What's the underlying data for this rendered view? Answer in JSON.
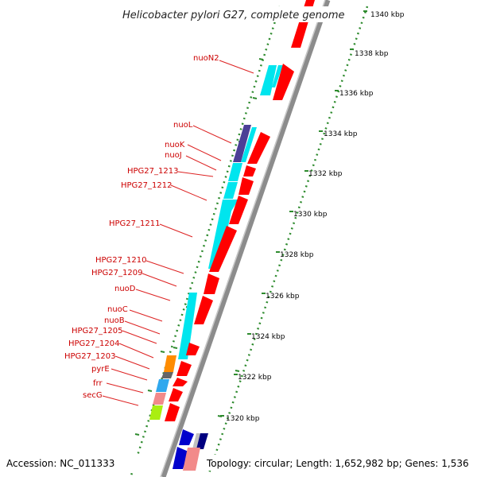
{
  "title": "Helicobacter pylori G27, complete genome",
  "accession": "Accession: NC_011333",
  "topology": "Topology: circular; Length: 1,652,982 bp; Genes: 1,536",
  "colors": {
    "backbone": "#8c8c8c",
    "ruler_dots": "#2e8b2e",
    "label_text": "#cc0000",
    "leader_line": "#dd2222",
    "forward_cds": "#ff0000",
    "reverse_cds": "#00e5ee",
    "nuoL_block": "#4b3f96",
    "orange_block": "#ff8c00",
    "gray_block": "#666666",
    "blue_block": "#2fa8ee",
    "pink_block": "#f28a8a",
    "lime_block": "#aaee11",
    "navy_block": "#0000cc"
  },
  "ruler_ticks": [
    "1340 kbp",
    "1338 kbp",
    "1336 kbp",
    "1334 kbp",
    "1332 kbp",
    "1330 kbp",
    "1328 kbp",
    "1326 kbp",
    "1324 kbp",
    "1322 kbp",
    "1320 kbp"
  ],
  "gene_labels": [
    "nuoN2",
    "nuoL",
    "nuoK",
    "nuoJ",
    "HPG27_1213",
    "HPG27_1212",
    "HPG27_1211",
    "HPG27_1210",
    "HPG27_1209",
    "nuoD",
    "nuoC",
    "nuoB",
    "HPG27_1205",
    "HPG27_1204",
    "HPG27_1203",
    "pyrE",
    "frr",
    "secG"
  ]
}
